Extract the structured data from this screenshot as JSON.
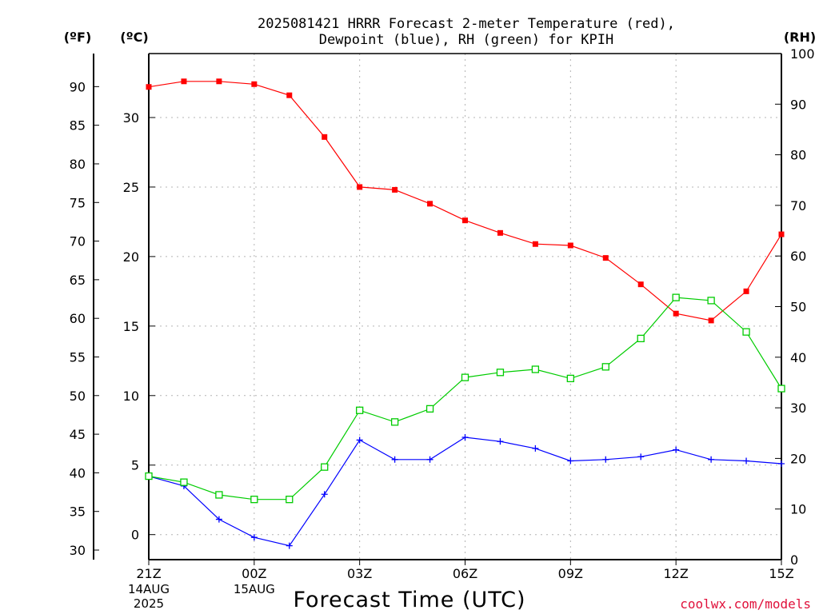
{
  "chart_data": {
    "type": "line",
    "title_line1": "2025081421 HRRR Forecast 2-meter Temperature (red),",
    "title_line2": "Dewpoint (blue), RH (green) for KPIH",
    "xlabel": "Forecast Time (UTC)",
    "watermark": "coolwx.com/models",
    "left_axis_f_label": "(ºF)",
    "left_axis_c_label": "(ºC)",
    "right_axis_label": "(RH)",
    "x_hours": [
      21,
      22,
      23,
      0,
      1,
      2,
      3,
      4,
      5,
      6,
      7,
      8,
      9,
      10,
      11,
      12,
      13,
      14,
      15
    ],
    "x_ticks": [
      {
        "label": "21Z",
        "sub1": "14AUG",
        "sub2": "2025"
      },
      {
        "label": "00Z",
        "sub1": "15AUG",
        "sub2": ""
      },
      {
        "label": "03Z",
        "sub1": "",
        "sub2": ""
      },
      {
        "label": "06Z",
        "sub1": "",
        "sub2": ""
      },
      {
        "label": "09Z",
        "sub1": "",
        "sub2": ""
      },
      {
        "label": "12Z",
        "sub1": "",
        "sub2": ""
      },
      {
        "label": "15Z",
        "sub1": "",
        "sub2": ""
      }
    ],
    "celsius_axis": {
      "ticks": [
        0,
        5,
        10,
        15,
        20,
        25,
        30
      ],
      "range": [
        -1.8,
        34.6
      ]
    },
    "fahrenheit_axis": {
      "ticks": [
        30,
        35,
        40,
        45,
        50,
        55,
        60,
        65,
        70,
        75,
        80,
        85,
        90
      ]
    },
    "rh_axis": {
      "ticks": [
        0,
        10,
        20,
        30,
        40,
        50,
        60,
        70,
        80,
        90,
        100
      ],
      "range": [
        0,
        100
      ]
    },
    "grid": true,
    "series": [
      {
        "name": "Temperature",
        "color": "#ff0000",
        "marker": "filled-square",
        "axis": "celsius",
        "values": [
          32.2,
          32.6,
          32.6,
          32.4,
          31.6,
          28.6,
          25.0,
          24.8,
          23.8,
          22.6,
          21.7,
          20.9,
          20.8,
          19.9,
          18.0,
          15.9,
          15.4,
          17.5,
          21.6
        ]
      },
      {
        "name": "Dewpoint",
        "color": "#0000ff",
        "marker": "plus",
        "axis": "celsius",
        "values": [
          4.2,
          3.5,
          1.1,
          -0.2,
          -0.8,
          2.9,
          6.8,
          5.4,
          5.4,
          7.0,
          6.7,
          6.2,
          5.3,
          5.4,
          5.6,
          6.1,
          5.4,
          5.3,
          5.1
        ]
      },
      {
        "name": "RH",
        "color": "#00cc00",
        "marker": "open-square",
        "axis": "rh",
        "values": [
          16.5,
          15.3,
          12.8,
          11.9,
          11.9,
          18.3,
          29.5,
          27.2,
          29.8,
          36.0,
          37.0,
          37.6,
          35.8,
          38.1,
          43.7,
          51.8,
          51.2,
          45.0,
          33.8
        ]
      }
    ]
  }
}
